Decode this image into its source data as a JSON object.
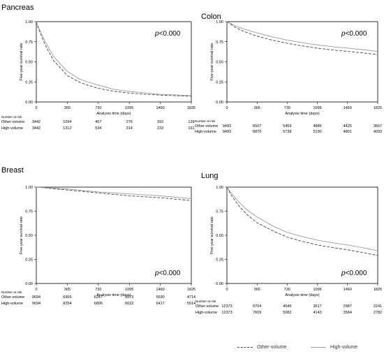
{
  "chart_data": [
    {
      "type": "line",
      "title": "Pancreas",
      "xlabel": "Analysis time (days)",
      "ylabel": "Five-year survival rate",
      "x_ticks": [
        0,
        365,
        730,
        1095,
        1460,
        1825
      ],
      "y_ticks": [
        "0.00",
        "0.25",
        "0.50",
        "0.75",
        "1.00"
      ],
      "xlim": [
        0,
        1825
      ],
      "ylim": [
        0,
        1
      ],
      "annotation": {
        "p": "p",
        "rest": "<0.000"
      },
      "annotation_position": "top-right",
      "series": [
        {
          "key": "other",
          "x": [
            0,
            30,
            100,
            200,
            365,
            500,
            600,
            730,
            900,
            1095,
            1300,
            1460,
            1825
          ],
          "y": [
            1.0,
            0.9,
            0.72,
            0.52,
            0.33,
            0.25,
            0.21,
            0.17,
            0.135,
            0.11,
            0.095,
            0.085,
            0.07
          ]
        },
        {
          "key": "high",
          "x": [
            0,
            30,
            100,
            200,
            365,
            500,
            600,
            730,
            900,
            1095,
            1300,
            1460,
            1825
          ],
          "y": [
            1.0,
            0.92,
            0.76,
            0.57,
            0.38,
            0.29,
            0.25,
            0.21,
            0.16,
            0.13,
            0.11,
            0.095,
            0.08
          ]
        }
      ],
      "risk_table": {
        "header": "Number at risk",
        "rows": [
          {
            "label": "Other-volume",
            "values": [
              "3442",
              "1094",
              "457",
              "276",
              "192",
              "139"
            ]
          },
          {
            "label": "High-volume",
            "values": [
              "3442",
              "1312",
              "534",
              "314",
              "233",
              "161"
            ]
          }
        ]
      }
    },
    {
      "type": "line",
      "title": "Colon",
      "xlabel": "Analysis time (days)",
      "ylabel": "Five-year survival rate",
      "x_ticks": [
        0,
        365,
        730,
        1095,
        1460,
        1825
      ],
      "y_ticks": [
        "0.00",
        "0.25",
        "0.50",
        "0.75",
        "1.00"
      ],
      "xlim": [
        0,
        1825
      ],
      "ylim": [
        0,
        1
      ],
      "annotation": {
        "p": "p",
        "rest": "<0.000"
      },
      "annotation_position": "top-right",
      "series": [
        {
          "key": "other",
          "x": [
            0,
            100,
            200,
            365,
            548,
            730,
            900,
            1095,
            1300,
            1460,
            1650,
            1825
          ],
          "y": [
            1.0,
            0.93,
            0.88,
            0.82,
            0.77,
            0.73,
            0.7,
            0.67,
            0.645,
            0.63,
            0.61,
            0.59
          ]
        },
        {
          "key": "high",
          "x": [
            0,
            100,
            200,
            365,
            548,
            730,
            900,
            1095,
            1300,
            1460,
            1650,
            1825
          ],
          "y": [
            1.0,
            0.95,
            0.91,
            0.86,
            0.81,
            0.77,
            0.74,
            0.71,
            0.685,
            0.67,
            0.65,
            0.63
          ]
        }
      ],
      "risk_table": {
        "header": "Number at risk",
        "rows": [
          {
            "label": "Other-volume",
            "values": [
              "9493",
              "6507",
              "5459",
              "4886",
              "4425",
              "3667"
            ]
          },
          {
            "label": "High-volume",
            "values": [
              "9493",
              "6870",
              "5738",
              "5190",
              "4801",
              "4093"
            ]
          }
        ]
      }
    },
    {
      "type": "line",
      "title": "Breast",
      "xlabel": "Analysis time (days)",
      "ylabel": "Five-year survival rate",
      "x_ticks": [
        0,
        365,
        730,
        1095,
        1460,
        1825
      ],
      "y_ticks": [
        "0.00",
        "0.25",
        "0.50",
        "0.75",
        "1.00"
      ],
      "xlim": [
        0,
        1825
      ],
      "ylim": [
        0,
        1
      ],
      "annotation": {
        "p": "p",
        "rest": "<0.000"
      },
      "annotation_position": "bottom-right",
      "series": [
        {
          "key": "other",
          "x": [
            0,
            365,
            730,
            1095,
            1460,
            1825
          ],
          "y": [
            1.0,
            0.97,
            0.94,
            0.91,
            0.89,
            0.86
          ]
        },
        {
          "key": "high",
          "x": [
            0,
            365,
            730,
            1095,
            1460,
            1825
          ],
          "y": [
            1.0,
            0.98,
            0.95,
            0.93,
            0.91,
            0.88
          ]
        }
      ],
      "risk_table": {
        "header": "Number at risk",
        "rows": [
          {
            "label": "Other-volume",
            "values": [
              "9694",
              "6955",
              "6247",
              "5973",
              "5690",
              "4714"
            ]
          },
          {
            "label": "High-volume",
            "values": [
              "9694",
              "8254",
              "6896",
              "6632",
              "6417",
              "5514"
            ]
          }
        ]
      }
    },
    {
      "type": "line",
      "title": "Lung",
      "xlabel": "Analysis time (days)",
      "ylabel": "Five-year survival rate",
      "x_ticks": [
        0,
        365,
        730,
        1095,
        1460,
        1825
      ],
      "y_ticks": [
        "0.00",
        "0.25",
        "0.50",
        "0.75",
        "1.00"
      ],
      "xlim": [
        0,
        1825
      ],
      "ylim": [
        0,
        1
      ],
      "annotation": {
        "p": "p",
        "rest": "<0.000"
      },
      "annotation_position": "bottom-right",
      "series": [
        {
          "key": "other",
          "x": [
            0,
            50,
            150,
            250,
            365,
            548,
            730,
            900,
            1095,
            1300,
            1460,
            1650,
            1825
          ],
          "y": [
            1.0,
            0.92,
            0.8,
            0.71,
            0.63,
            0.55,
            0.48,
            0.44,
            0.4,
            0.37,
            0.35,
            0.32,
            0.29
          ]
        },
        {
          "key": "high",
          "x": [
            0,
            50,
            150,
            250,
            365,
            548,
            730,
            900,
            1095,
            1300,
            1460,
            1650,
            1825
          ],
          "y": [
            1.0,
            0.94,
            0.84,
            0.76,
            0.69,
            0.6,
            0.53,
            0.49,
            0.45,
            0.42,
            0.4,
            0.37,
            0.34
          ]
        }
      ],
      "risk_table": {
        "header": "Number at risk",
        "rows": [
          {
            "label": "Other-volume",
            "values": [
              "12373",
              "6704",
              "4546",
              "3617",
              "2987",
              "2241"
            ]
          },
          {
            "label": "High-volume",
            "values": [
              "12373",
              "7609",
              "5082",
              "4143",
              "3584",
              "2782"
            ]
          }
        ]
      }
    }
  ],
  "legend": {
    "placement": "bottom-right",
    "items": [
      {
        "key": "other",
        "label": "Other-volume",
        "style": "dashed",
        "color": "#444444"
      },
      {
        "key": "high",
        "label": "High-volume",
        "style": "solid",
        "color": "#999999"
      }
    ]
  },
  "colors": {
    "other": "#444444",
    "high": "#999999",
    "axis": "#000000"
  }
}
